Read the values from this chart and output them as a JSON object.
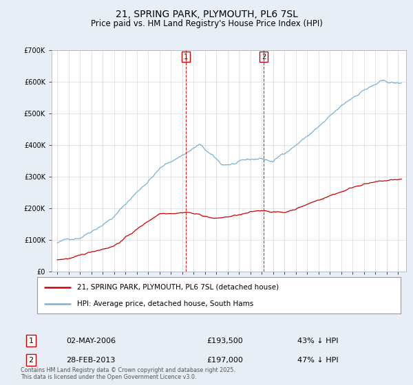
{
  "title": "21, SPRING PARK, PLYMOUTH, PL6 7SL",
  "subtitle": "Price paid vs. HM Land Registry's House Price Index (HPI)",
  "ylim": [
    0,
    700000
  ],
  "yticks": [
    0,
    100000,
    200000,
    300000,
    400000,
    500000,
    600000,
    700000
  ],
  "ytick_labels": [
    "£0",
    "£100K",
    "£200K",
    "£300K",
    "£400K",
    "£500K",
    "£600K",
    "£700K"
  ],
  "xlim_start": 1994.5,
  "xlim_end": 2025.7,
  "line1_color": "#cc0000",
  "line2_color": "#7ab0d4",
  "vline1_x": 2006.33,
  "vline2_x": 2013.17,
  "vline_color": "#cc0000",
  "marker1_label": "1",
  "marker2_label": "2",
  "legend_label1": "21, SPRING PARK, PLYMOUTH, PL6 7SL (detached house)",
  "legend_label2": "HPI: Average price, detached house, South Hams",
  "footer": "Contains HM Land Registry data © Crown copyright and database right 2025.\nThis data is licensed under the Open Government Licence v3.0.",
  "background_color": "#e8eef5",
  "plot_bg_color": "#ffffff",
  "title_fontsize": 10,
  "subtitle_fontsize": 8.5,
  "tick_fontsize": 7
}
